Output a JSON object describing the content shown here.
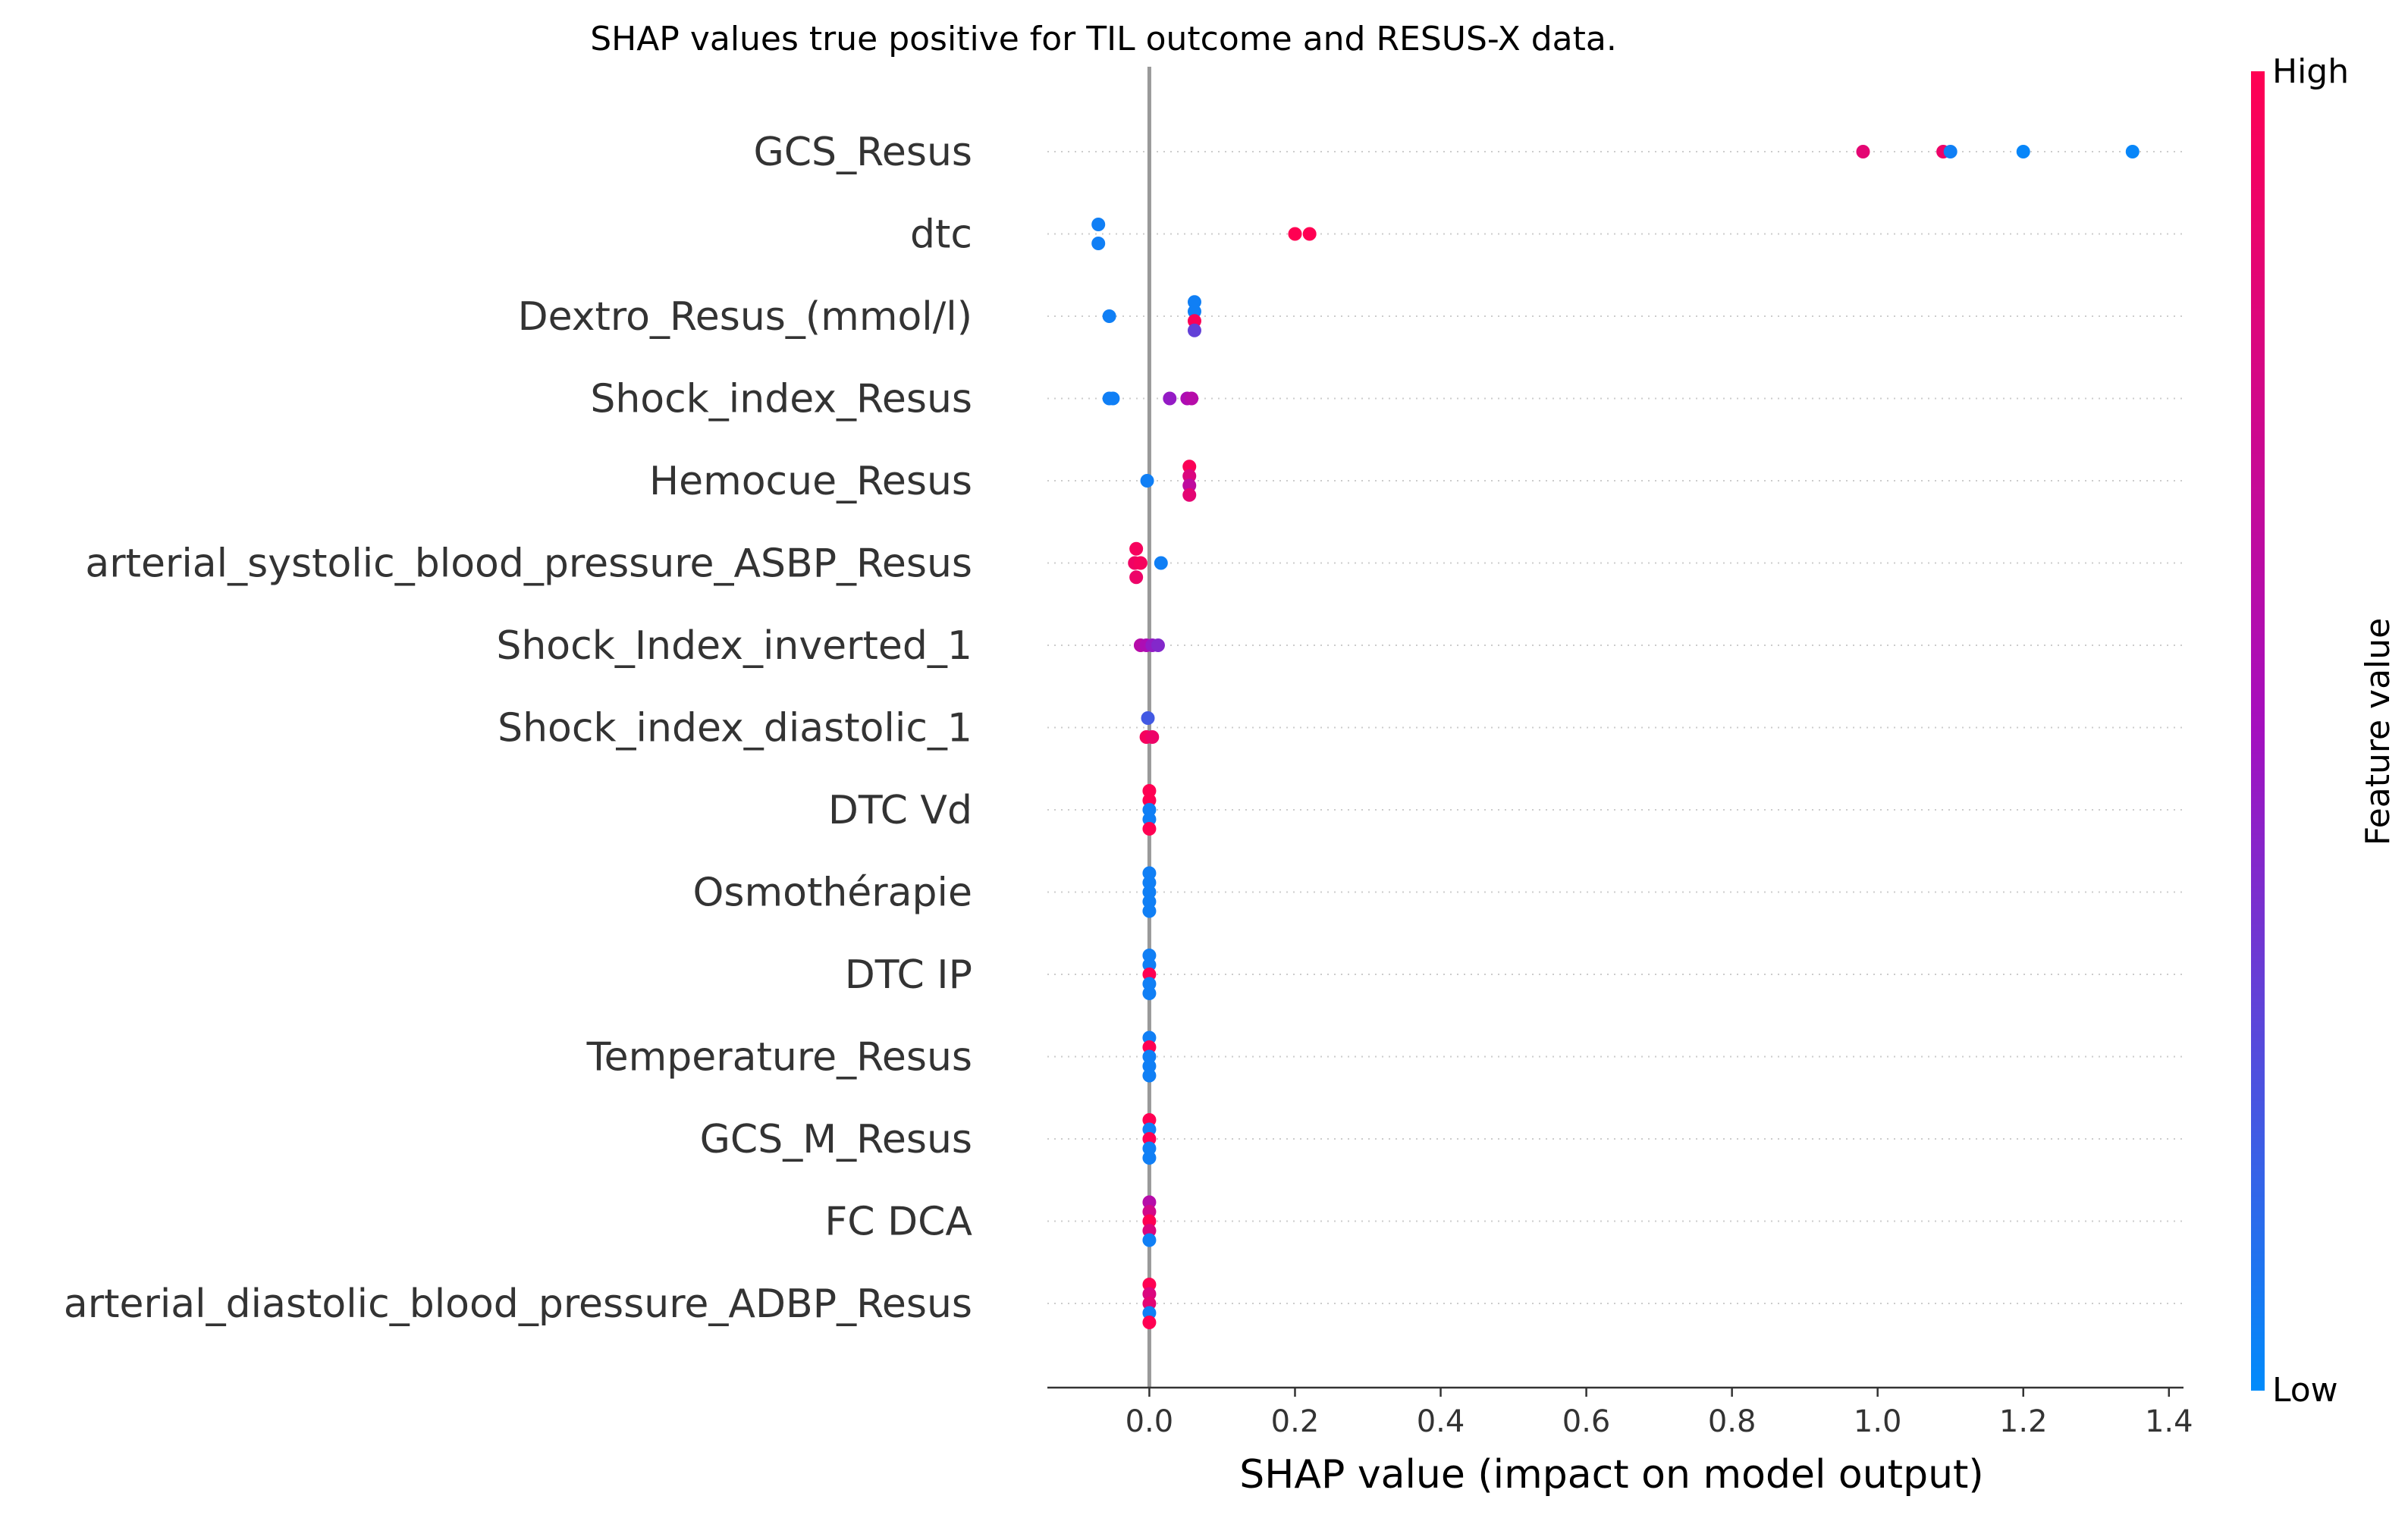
{
  "chart_data": {
    "type": "scatter",
    "subtype": "shap-beeswarm",
    "title": "SHAP values true positive for TIL outcome and RESUS-X data.",
    "xlabel": "SHAP value (impact on model output)",
    "xlim": [
      -0.14,
      1.42
    ],
    "xticks": [
      0.0,
      0.2,
      0.4,
      0.6,
      0.8,
      1.0,
      1.2,
      1.4
    ],
    "xtick_labels": [
      "0.0",
      "0.2",
      "0.4",
      "0.6",
      "0.8",
      "1.0",
      "1.2",
      "1.4"
    ],
    "colorbar": {
      "high_label": "High",
      "low_label": "Low",
      "title": "Feature value",
      "low_color": "#008bfb",
      "mid_color": "#a40fbf",
      "high_color": "#ff0052"
    },
    "features": [
      {
        "name": "GCS_Resus",
        "points": [
          [
            0.98,
            0.85,
            0
          ],
          [
            1.09,
            0.9,
            0
          ],
          [
            1.1,
            0.05,
            0
          ],
          [
            1.2,
            0.02,
            0
          ],
          [
            1.35,
            0.02,
            0
          ]
        ]
      },
      {
        "name": "dtc",
        "points": [
          [
            -0.07,
            0.05,
            -1
          ],
          [
            -0.07,
            0.05,
            1
          ],
          [
            0.2,
            1.0,
            0
          ],
          [
            0.22,
            1.0,
            0
          ]
        ]
      },
      {
        "name": "Dextro_Resus_(mmol/l)",
        "points": [
          [
            -0.055,
            0.05,
            0
          ],
          [
            0.062,
            0.05,
            -1.5
          ],
          [
            0.062,
            0.05,
            -0.5
          ],
          [
            0.062,
            0.98,
            0.5
          ],
          [
            0.062,
            0.3,
            1.5
          ]
        ]
      },
      {
        "name": "Shock_index_Resus",
        "points": [
          [
            -0.055,
            0.05,
            0
          ],
          [
            -0.05,
            0.05,
            0
          ],
          [
            0.028,
            0.45,
            0
          ],
          [
            0.052,
            0.55,
            0
          ],
          [
            0.058,
            0.6,
            0
          ]
        ]
      },
      {
        "name": "Hemocue_Resus",
        "points": [
          [
            -0.003,
            0.05,
            0
          ],
          [
            0.055,
            0.98,
            -1.5
          ],
          [
            0.055,
            0.8,
            -0.5
          ],
          [
            0.055,
            0.65,
            0.5
          ],
          [
            0.055,
            0.85,
            1.5
          ]
        ]
      },
      {
        "name": "arterial_systolic_blood_pressure_ASBP_Resus",
        "points": [
          [
            -0.018,
            0.95,
            -1.5
          ],
          [
            -0.02,
            0.92,
            0
          ],
          [
            -0.012,
            0.95,
            0
          ],
          [
            -0.018,
            0.9,
            1.5
          ],
          [
            0.016,
            0.05,
            0
          ]
        ]
      },
      {
        "name": "Shock_Index_inverted_1",
        "points": [
          [
            -0.012,
            0.6,
            0
          ],
          [
            -0.004,
            0.55,
            0
          ],
          [
            0.004,
            0.45,
            0
          ],
          [
            0.012,
            0.4,
            0
          ]
        ]
      },
      {
        "name": "Shock_index_diastolic_1",
        "points": [
          [
            -0.002,
            0.2,
            -1
          ],
          [
            -0.004,
            0.95,
            1
          ],
          [
            0.004,
            0.9,
            1
          ]
        ]
      },
      {
        "name": "DTC Vd",
        "points": [
          [
            0.0,
            1.0,
            -2
          ],
          [
            0.0,
            1.0,
            -1
          ],
          [
            0.0,
            0.05,
            0
          ],
          [
            0.0,
            0.05,
            1
          ],
          [
            0.0,
            1.0,
            2
          ]
        ]
      },
      {
        "name": "Osmothérapie",
        "points": [
          [
            0.0,
            0.05,
            -2
          ],
          [
            0.0,
            0.05,
            -1
          ],
          [
            0.0,
            0.05,
            0
          ],
          [
            0.0,
            0.05,
            1
          ],
          [
            0.0,
            0.05,
            2
          ]
        ]
      },
      {
        "name": "DTC IP",
        "points": [
          [
            0.0,
            0.05,
            -2
          ],
          [
            0.0,
            0.05,
            -1
          ],
          [
            0.0,
            1.0,
            0
          ],
          [
            0.0,
            0.05,
            1
          ],
          [
            0.0,
            0.05,
            2
          ]
        ]
      },
      {
        "name": "Temperature_Resus",
        "points": [
          [
            0.0,
            0.05,
            -2
          ],
          [
            0.0,
            1.0,
            -1
          ],
          [
            0.0,
            0.05,
            0
          ],
          [
            0.0,
            0.05,
            1
          ],
          [
            0.0,
            0.05,
            2
          ]
        ]
      },
      {
        "name": "GCS_M_Resus",
        "points": [
          [
            0.0,
            1.0,
            -2
          ],
          [
            0.0,
            0.05,
            -1
          ],
          [
            0.0,
            1.0,
            0
          ],
          [
            0.0,
            0.05,
            1
          ],
          [
            0.0,
            0.05,
            2
          ]
        ]
      },
      {
        "name": "FC  DCA",
        "points": [
          [
            0.0,
            0.6,
            -2
          ],
          [
            0.0,
            0.75,
            -1
          ],
          [
            0.0,
            1.0,
            0
          ],
          [
            0.0,
            0.8,
            1
          ],
          [
            0.0,
            0.05,
            2
          ]
        ]
      },
      {
        "name": "arterial_diastolic_blood_pressure_ADBP_Resus",
        "points": [
          [
            0.0,
            1.0,
            -2
          ],
          [
            0.0,
            0.8,
            -1
          ],
          [
            0.0,
            0.85,
            0
          ],
          [
            0.0,
            0.05,
            1
          ],
          [
            0.0,
            1.0,
            2
          ]
        ]
      }
    ]
  }
}
